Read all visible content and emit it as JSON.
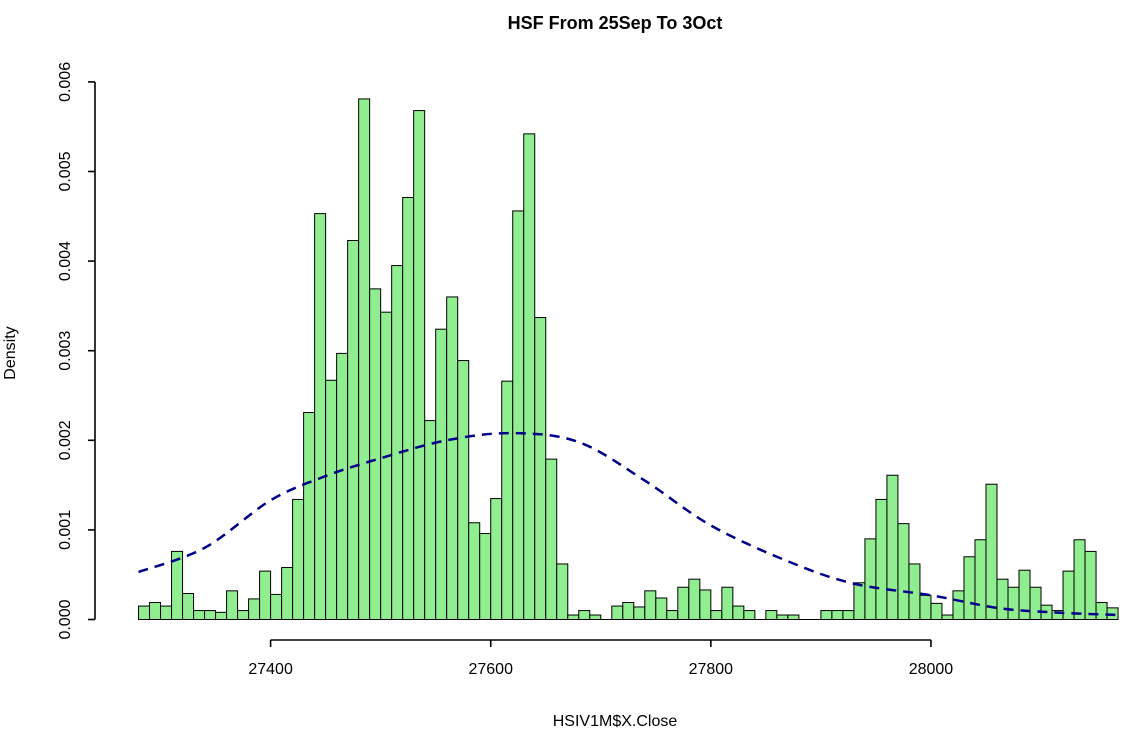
{
  "title": "HSF From 25Sep To 3Oct",
  "x_axis": {
    "label": "HSIV1M$X.Close",
    "ticks": [
      "27400",
      "27600",
      "27800",
      "28000"
    ]
  },
  "y_axis": {
    "label": "Density",
    "ticks": [
      "0.000",
      "0.001",
      "0.002",
      "0.003",
      "0.004",
      "0.005",
      "0.006"
    ]
  },
  "colors": {
    "background": "#ffffff",
    "bar_fill": "#90EE90",
    "bar_stroke": "#000000",
    "axis": "#000000",
    "text": "#000000",
    "curve": "#00008B"
  },
  "chart_data": {
    "type": "bar",
    "subtype": "histogram-with-density-overlay",
    "title": "HSF From 25Sep To 3Oct",
    "xlabel": "HSIV1M$X.Close",
    "ylabel": "Density",
    "xlim": [
      27275,
      28170
    ],
    "ylim": [
      0,
      0.006
    ],
    "x_tick_values": [
      27400,
      27600,
      27800,
      28000
    ],
    "y_tick_values": [
      0,
      0.001,
      0.002,
      0.003,
      0.004,
      0.005,
      0.006
    ],
    "grid": false,
    "legend": false,
    "bin_start": 27280,
    "bin_width": 10,
    "densities": [
      0.00015,
      0.00019,
      0.00015,
      0.00076,
      0.00029,
      0.0001,
      0.0001,
      8e-05,
      0.00032,
      0.0001,
      0.00023,
      0.00054,
      0.00028,
      0.00058,
      0.00134,
      0.00231,
      0.00453,
      0.00267,
      0.00297,
      0.00423,
      0.00581,
      0.00369,
      0.00343,
      0.00395,
      0.00471,
      0.00568,
      0.00222,
      0.00324,
      0.0036,
      0.00289,
      0.00108,
      0.00096,
      0.00135,
      0.00266,
      0.00456,
      0.00542,
      0.00337,
      0.00179,
      0.00062,
      5e-05,
      0.0001,
      5e-05,
      0.0,
      0.00015,
      0.00019,
      0.00014,
      0.00032,
      0.00024,
      0.0001,
      0.00036,
      0.00045,
      0.00033,
      0.0001,
      0.00036,
      0.00015,
      0.0001,
      0.0,
      0.0001,
      5e-05,
      5e-05,
      0.0,
      0.0,
      0.0001,
      0.0001,
      0.0001,
      0.00041,
      0.0009,
      0.00134,
      0.00161,
      0.00107,
      0.00062,
      0.00027,
      0.00018,
      5e-05,
      0.00032,
      0.0007,
      0.00089,
      0.00151,
      0.00045,
      0.00036,
      0.00055,
      0.00036,
      0.00016,
      0.0001,
      0.00054,
      0.00089,
      0.00076,
      0.00019,
      0.00013
    ],
    "overlay_curve": {
      "style": "dashed",
      "color": "#00008B",
      "points": [
        [
          27280,
          0.00053
        ],
        [
          27340,
          0.0008
        ],
        [
          27400,
          0.00133
        ],
        [
          27450,
          0.0016
        ],
        [
          27500,
          0.0018
        ],
        [
          27560,
          0.002
        ],
        [
          27620,
          0.00208
        ],
        [
          27680,
          0.00198
        ],
        [
          27740,
          0.00155
        ],
        [
          27800,
          0.00105
        ],
        [
          27870,
          0.00065
        ],
        [
          27930,
          0.0004
        ],
        [
          28000,
          0.00027
        ],
        [
          28060,
          0.00013
        ],
        [
          28110,
          8e-05
        ],
        [
          28170,
          5e-05
        ]
      ]
    }
  }
}
